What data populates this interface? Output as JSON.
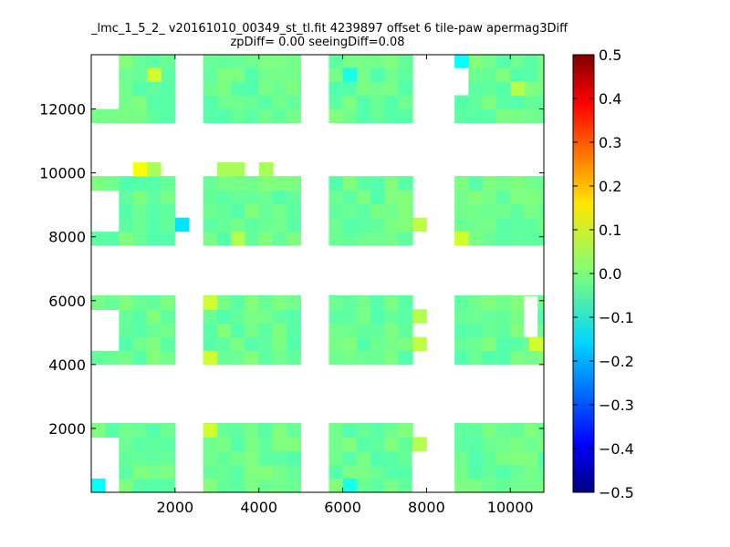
{
  "chart_data": {
    "type": "heatmap",
    "title": "_lmc_1_5_2_ v20161010_00349_st_tl.fit 4239897 offset 6 tile-paw apermag3Diff",
    "subtitle": "zpDiff= 0.00 seeingDiff=0.08",
    "xlim": [
      0,
      10800
    ],
    "ylim": [
      0,
      13700
    ],
    "x_ticks": [
      2000,
      4000,
      6000,
      8000,
      10000
    ],
    "y_ticks": [
      2000,
      4000,
      6000,
      8000,
      10000,
      12000
    ],
    "x_tick_labels": [
      "2000",
      "4000",
      "6000",
      "8000",
      "10000"
    ],
    "y_tick_labels": [
      "2000",
      "4000",
      "6000",
      "8000",
      "10000",
      "12000"
    ],
    "colorbar": {
      "colormap": "jet",
      "vmin": -0.5,
      "vmax": 0.5,
      "ticks": [
        0.5,
        0.4,
        0.3,
        0.2,
        0.1,
        0.0,
        -0.1,
        -0.2,
        -0.3,
        -0.4,
        -0.5
      ],
      "tick_labels": [
        "0.5",
        "0.4",
        "0.3",
        "0.2",
        "0.1",
        "0.0",
        "−0.1",
        "−0.2",
        "−0.3",
        "−0.4",
        "−0.5"
      ]
    },
    "cell_size": [
      330,
      430
    ],
    "base_value": -0.02,
    "value_jitter": 0.025,
    "blocks": [
      {
        "x": [
          0,
          2000
        ],
        "y": [
          0,
          2170
        ],
        "empty": [
          [
            0,
            670,
            0,
            1730
          ]
        ]
      },
      {
        "x": [
          2670,
          5000
        ],
        "y": [
          0,
          2170
        ]
      },
      {
        "x": [
          5670,
          7670
        ],
        "y": [
          0,
          2170
        ],
        "empty": [
          [
            7670,
            8000,
            0,
            1300
          ]
        ]
      },
      {
        "x": [
          8670,
          10800
        ],
        "y": [
          0,
          2170
        ]
      },
      {
        "x": [
          0,
          2000
        ],
        "y": [
          4000,
          6170
        ],
        "empty": [
          [
            0,
            670,
            4430,
            5730
          ]
        ]
      },
      {
        "x": [
          2670,
          5000
        ],
        "y": [
          4000,
          6170
        ]
      },
      {
        "x": [
          5670,
          7670
        ],
        "y": [
          4000,
          6170
        ]
      },
      {
        "x": [
          8670,
          10800
        ],
        "y": [
          4000,
          6170
        ],
        "empty": [
          [
            10330,
            10800,
            4870,
            6170
          ]
        ]
      },
      {
        "x": [
          0,
          2000
        ],
        "y": [
          7730,
          9900
        ],
        "empty": [
          [
            0,
            670,
            8170,
            9470
          ]
        ]
      },
      {
        "x": [
          2670,
          5000
        ],
        "y": [
          7730,
          9900
        ]
      },
      {
        "x": [
          5670,
          7670
        ],
        "y": [
          7730,
          9900
        ]
      },
      {
        "x": [
          8670,
          10800
        ],
        "y": [
          7730,
          9900
        ]
      },
      {
        "x": [
          0,
          2000
        ],
        "y": [
          11570,
          13700
        ],
        "empty": [
          [
            0,
            670,
            12000,
            13700
          ]
        ]
      },
      {
        "x": [
          2670,
          5000
        ],
        "y": [
          11570,
          13700
        ]
      },
      {
        "x": [
          5670,
          7670
        ],
        "y": [
          11570,
          13700
        ]
      },
      {
        "x": [
          8670,
          10800
        ],
        "y": [
          11570,
          13700
        ],
        "empty": [
          [
            8670,
            9000,
            12570,
            12870
          ],
          [
            8670,
            9000,
            13000,
            13300
          ]
        ]
      }
    ],
    "extra_cells": [
      {
        "x": 1000,
        "y": 9900,
        "value": 0.12
      },
      {
        "x": 1330,
        "y": 9900,
        "value": 0.04
      },
      {
        "x": 3000,
        "y": 9900,
        "value": 0.04
      },
      {
        "x": 3330,
        "y": 9900,
        "value": 0.04
      },
      {
        "x": 4000,
        "y": 9900,
        "value": 0.04
      },
      {
        "x": 2000,
        "y": 8170,
        "value": -0.15
      },
      {
        "x": 7670,
        "y": 8170,
        "value": 0.06
      },
      {
        "x": 7670,
        "y": 5300,
        "value": 0.05
      },
      {
        "x": 7670,
        "y": 4430,
        "value": 0.06
      },
      {
        "x": 7670,
        "y": 1300,
        "value": 0.05
      },
      {
        "x": 10450,
        "y": 4430,
        "value": 0.08
      },
      {
        "x": 8670,
        "y": 13300,
        "value": -0.12
      }
    ],
    "hot_cells": [
      {
        "x": 1330,
        "y": 12860,
        "value": 0.08
      },
      {
        "x": 2670,
        "y": 5730,
        "value": 0.08
      },
      {
        "x": 2670,
        "y": 4000,
        "value": 0.08
      },
      {
        "x": 2670,
        "y": 1730,
        "value": 0.08
      },
      {
        "x": 8670,
        "y": 7730,
        "value": 0.08
      },
      {
        "x": 3330,
        "y": 7730,
        "value": 0.05
      },
      {
        "x": 0,
        "y": 0,
        "value": -0.12
      },
      {
        "x": 6000,
        "y": 12860,
        "value": -0.1
      },
      {
        "x": 6000,
        "y": 0,
        "value": -0.1
      },
      {
        "x": 10000,
        "y": 12430,
        "value": 0.05
      }
    ]
  }
}
